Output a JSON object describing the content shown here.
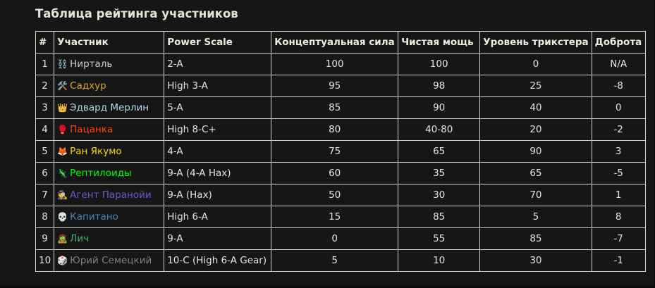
{
  "title": "Таблица рейтинга участников",
  "columns": [
    "#",
    "Участник",
    "Power Scale",
    "Концептуальная сила",
    "Чистая мощь",
    "Уровень трикстера",
    "Доброта"
  ],
  "rows": [
    {
      "n": "1",
      "emoji": "⛓️",
      "name": "Нирталь",
      "color": "#cccccc",
      "scale": "2-A",
      "concept": "100",
      "power": "100",
      "trick": "0",
      "kind": "N/A"
    },
    {
      "n": "2",
      "emoji": "🛠️",
      "name": "Садхур",
      "color": "#DAA520",
      "scale": "High 3-A",
      "concept": "95",
      "power": "98",
      "trick": "25",
      "kind": "-8"
    },
    {
      "n": "3",
      "emoji": "👑",
      "name": "Эдвард Мерлин",
      "color": "#ADD8E6",
      "scale": "5-A",
      "concept": "85",
      "power": "90",
      "trick": "40",
      "kind": "0"
    },
    {
      "n": "4",
      "emoji": "🥊",
      "name": "Пацанка",
      "color": "#FF4500",
      "scale": "High 8-C+",
      "concept": "80",
      "power": "40-80",
      "trick": "20",
      "kind": "-2"
    },
    {
      "n": "5",
      "emoji": "🦊",
      "name": "Ран Якумо",
      "color": "#FFD700",
      "scale": "4-A",
      "concept": "75",
      "power": "65",
      "trick": "90",
      "kind": "3"
    },
    {
      "n": "6",
      "emoji": "🦎",
      "name": "Рептилоиды",
      "color": "#00FF00",
      "scale": "9-A (4-A Hax)",
      "concept": "60",
      "power": "35",
      "trick": "65",
      "kind": "-5"
    },
    {
      "n": "7",
      "emoji": "🕵️",
      "name": "Агент Паранойи",
      "color": "#6A5ACD",
      "scale": "9-A (Hax)",
      "concept": "50",
      "power": "30",
      "trick": "70",
      "kind": "1"
    },
    {
      "n": "8",
      "emoji": "💀",
      "name": "Капитано",
      "color": "#4682B4",
      "scale": "High 6-A",
      "concept": "15",
      "power": "85",
      "trick": "5",
      "kind": "8"
    },
    {
      "n": "9",
      "emoji": "🧟",
      "name": "Лич",
      "color": "#3CB371",
      "scale": "9-A",
      "concept": "0",
      "power": "55",
      "trick": "85",
      "kind": "-7"
    },
    {
      "n": "10",
      "emoji": "🎲",
      "name": "Юрий Семецкий",
      "color": "#808080",
      "scale": "10-C (High 6-A Gear)",
      "concept": "5",
      "power": "10",
      "trick": "30",
      "kind": "-1"
    }
  ]
}
